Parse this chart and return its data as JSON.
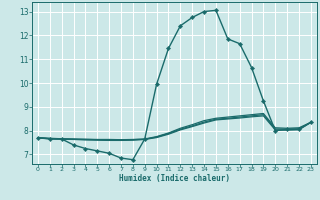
{
  "xlabel": "Humidex (Indice chaleur)",
  "xlim": [
    -0.5,
    23.5
  ],
  "ylim": [
    6.6,
    13.4
  ],
  "yticks": [
    7,
    8,
    9,
    10,
    11,
    12,
    13
  ],
  "xticks": [
    0,
    1,
    2,
    3,
    4,
    5,
    6,
    7,
    8,
    9,
    10,
    11,
    12,
    13,
    14,
    15,
    16,
    17,
    18,
    19,
    20,
    21,
    22,
    23
  ],
  "background_color": "#cce8e8",
  "grid_color": "#ffffff",
  "line_color": "#1a6b6b",
  "series": [
    {
      "x": [
        0,
        1,
        2,
        3,
        4,
        5,
        6,
        7,
        8,
        9,
        10,
        11,
        12,
        13,
        14,
        15,
        16,
        17,
        18,
        19,
        20,
        21,
        22,
        23
      ],
      "y": [
        7.7,
        7.65,
        7.65,
        7.4,
        7.25,
        7.15,
        7.05,
        6.85,
        6.78,
        7.65,
        9.95,
        11.45,
        12.4,
        12.75,
        13.0,
        13.05,
        11.85,
        11.65,
        10.65,
        9.25,
        8.0,
        8.05,
        8.05,
        8.35
      ],
      "marker": "D",
      "markersize": 2.2,
      "linewidth": 1.0
    },
    {
      "x": [
        0,
        1,
        2,
        3,
        4,
        5,
        6,
        7,
        8,
        9,
        10,
        11,
        12,
        13,
        14,
        15,
        16,
        17,
        18,
        19,
        20,
        21,
        22,
        23
      ],
      "y": [
        7.7,
        7.68,
        7.66,
        7.65,
        7.64,
        7.63,
        7.63,
        7.62,
        7.63,
        7.65,
        7.75,
        7.9,
        8.1,
        8.25,
        8.42,
        8.52,
        8.57,
        8.62,
        8.67,
        8.72,
        8.12,
        8.1,
        8.12,
        8.35
      ],
      "marker": null,
      "markersize": 0,
      "linewidth": 0.9
    },
    {
      "x": [
        0,
        1,
        2,
        3,
        4,
        5,
        6,
        7,
        8,
        9,
        10,
        11,
        12,
        13,
        14,
        15,
        16,
        17,
        18,
        19,
        20,
        21,
        22,
        23
      ],
      "y": [
        7.7,
        7.67,
        7.65,
        7.64,
        7.63,
        7.62,
        7.61,
        7.61,
        7.62,
        7.64,
        7.73,
        7.88,
        8.06,
        8.2,
        8.36,
        8.48,
        8.52,
        8.57,
        8.62,
        8.67,
        8.07,
        8.06,
        8.08,
        8.35
      ],
      "marker": null,
      "markersize": 0,
      "linewidth": 0.9
    },
    {
      "x": [
        0,
        1,
        2,
        3,
        4,
        5,
        6,
        7,
        8,
        9,
        10,
        11,
        12,
        13,
        14,
        15,
        16,
        17,
        18,
        19,
        20,
        21,
        22,
        23
      ],
      "y": [
        7.7,
        7.66,
        7.64,
        7.63,
        7.61,
        7.6,
        7.59,
        7.59,
        7.6,
        7.63,
        7.71,
        7.85,
        8.03,
        8.17,
        8.32,
        8.45,
        8.49,
        8.53,
        8.58,
        8.62,
        8.03,
        8.02,
        8.04,
        8.35
      ],
      "marker": null,
      "markersize": 0,
      "linewidth": 0.9
    }
  ]
}
